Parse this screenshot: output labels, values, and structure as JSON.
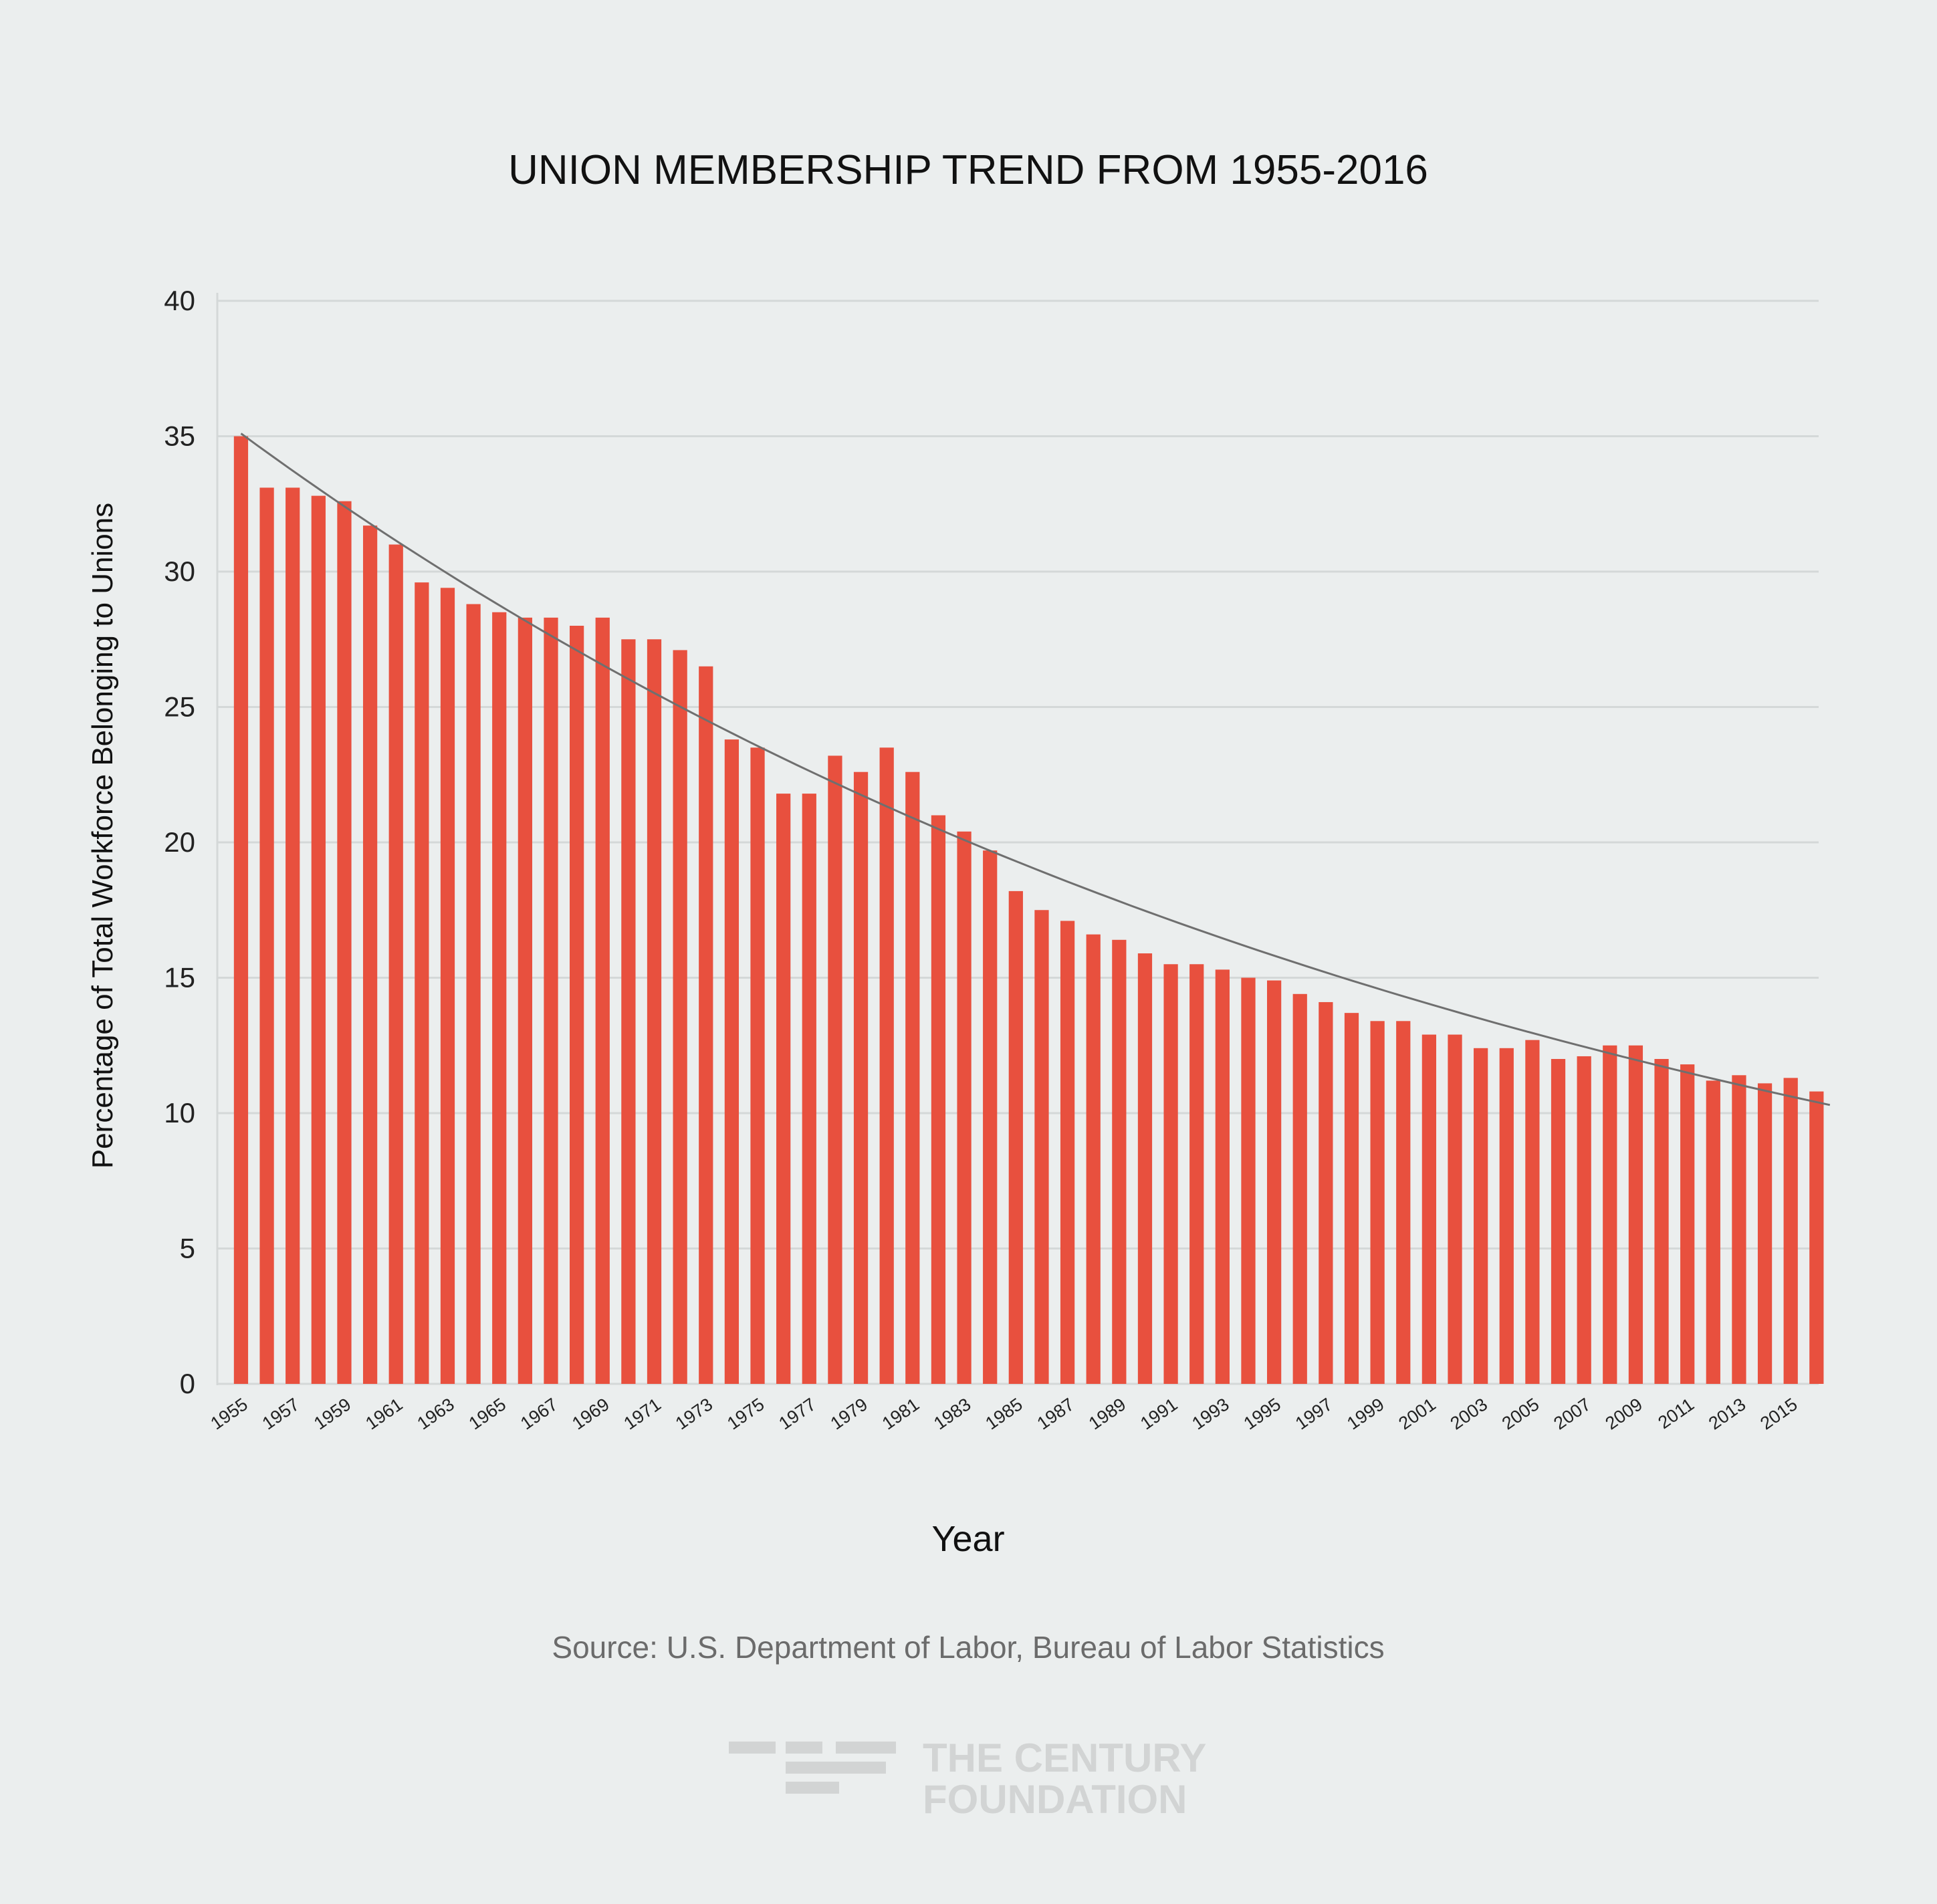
{
  "chart_data": {
    "type": "bar",
    "title": "UNION MEMBERSHIP TREND FROM 1955-2016",
    "xlabel": "Year",
    "ylabel": "Percentage of Total Workforce Belonging to Unions",
    "ylim": [
      0,
      40
    ],
    "yticks": [
      0,
      5,
      10,
      15,
      20,
      25,
      30,
      35,
      40
    ],
    "grid": true,
    "legend": "none",
    "bar_color": "#e8503e",
    "trend_color": "#6f6f6f",
    "categories": [
      "1955",
      "1956",
      "1957",
      "1958",
      "1959",
      "1960",
      "1961",
      "1962",
      "1963",
      "1964",
      "1965",
      "1966",
      "1967",
      "1968",
      "1969",
      "1970",
      "1971",
      "1972",
      "1973",
      "1974",
      "1975",
      "1976",
      "1977",
      "1978",
      "1979",
      "1980",
      "1981",
      "1982",
      "1983",
      "1984",
      "1985",
      "1986",
      "1987",
      "1988",
      "1989",
      "1990",
      "1991",
      "1992",
      "1993",
      "1994",
      "1995",
      "1996",
      "1997",
      "1998",
      "1999",
      "2000",
      "2001",
      "2002",
      "2003",
      "2004",
      "2005",
      "2006",
      "2007",
      "2008",
      "2009",
      "2010",
      "2011",
      "2012",
      "2013",
      "2014",
      "2015",
      "2016"
    ],
    "x_tick_labels": [
      "1955",
      "1957",
      "1959",
      "1961",
      "1963",
      "1965",
      "1967",
      "1969",
      "1971",
      "1973",
      "1975",
      "1977",
      "1979",
      "1981",
      "1983",
      "1985",
      "1987",
      "1989",
      "1991",
      "1993",
      "1995",
      "1997",
      "1999",
      "2001",
      "2003",
      "2005",
      "2007",
      "2009",
      "2011",
      "2013",
      "2015"
    ],
    "values": [
      35.0,
      33.1,
      33.1,
      32.8,
      32.6,
      31.7,
      31.0,
      29.6,
      29.4,
      28.8,
      28.5,
      28.3,
      28.3,
      28.0,
      28.3,
      27.5,
      27.5,
      27.1,
      26.5,
      23.8,
      23.5,
      21.8,
      21.8,
      23.2,
      22.6,
      23.5,
      22.6,
      21.0,
      20.4,
      19.7,
      18.2,
      17.5,
      17.1,
      16.6,
      16.4,
      15.9,
      15.5,
      15.5,
      15.3,
      15.0,
      14.9,
      14.4,
      14.1,
      13.7,
      13.4,
      13.4,
      12.9,
      12.9,
      12.4,
      12.4,
      12.7,
      12.0,
      12.1,
      12.5,
      12.5,
      12.0,
      11.8,
      11.2,
      11.4,
      11.1,
      11.3,
      10.8
    ],
    "trendline": {
      "type": "exponential",
      "start": 35.1,
      "end": 10.3
    }
  },
  "source": "Source:  U.S. Department of Labor, Bureau of Labor Statistics",
  "logo": {
    "line1": "THE CENTURY",
    "line2": "FOUNDATION"
  }
}
